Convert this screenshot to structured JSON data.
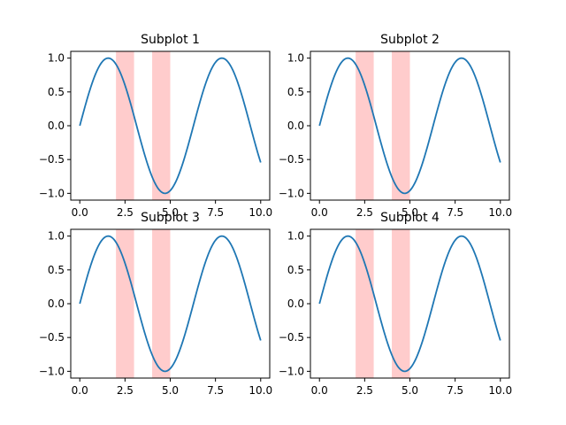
{
  "chart_data": [
    {
      "type": "line",
      "title": "Subplot 1",
      "xlabel": "",
      "ylabel": "",
      "xlim": [
        -0.5,
        10.5
      ],
      "ylim": [
        -1.1,
        1.1
      ],
      "xticks": [
        "0.0",
        "2.5",
        "5.0",
        "7.5",
        "10.0"
      ],
      "yticks": [
        "-1.0",
        "-0.5",
        "0.0",
        "0.5",
        "1.0"
      ],
      "function": "sin(x)",
      "x_range": [
        0,
        10
      ],
      "shaded_regions": [
        [
          2,
          3
        ],
        [
          4,
          5
        ]
      ],
      "shade_color": "#ff0000",
      "line_color": "#1f77b4",
      "grid": false
    },
    {
      "type": "line",
      "title": "Subplot 2",
      "xlabel": "",
      "ylabel": "",
      "xlim": [
        -0.5,
        10.5
      ],
      "ylim": [
        -1.1,
        1.1
      ],
      "xticks": [
        "0.0",
        "2.5",
        "5.0",
        "7.5",
        "10.0"
      ],
      "yticks": [
        "-1.0",
        "-0.5",
        "0.0",
        "0.5",
        "1.0"
      ],
      "function": "sin(x)",
      "x_range": [
        0,
        10
      ],
      "shaded_regions": [
        [
          2,
          3
        ],
        [
          4,
          5
        ]
      ],
      "shade_color": "#ff0000",
      "line_color": "#1f77b4",
      "grid": false
    },
    {
      "type": "line",
      "title": "Subplot 3",
      "xlabel": "",
      "ylabel": "",
      "xlim": [
        -0.5,
        10.5
      ],
      "ylim": [
        -1.1,
        1.1
      ],
      "xticks": [
        "0.0",
        "2.5",
        "5.0",
        "7.5",
        "10.0"
      ],
      "yticks": [
        "-1.0",
        "-0.5",
        "0.0",
        "0.5",
        "1.0"
      ],
      "function": "sin(x)",
      "x_range": [
        0,
        10
      ],
      "shaded_regions": [
        [
          2,
          3
        ],
        [
          4,
          5
        ]
      ],
      "shade_color": "#ff0000",
      "line_color": "#1f77b4",
      "grid": false
    },
    {
      "type": "line",
      "title": "Subplot 4",
      "xlabel": "",
      "ylabel": "",
      "xlim": [
        -0.5,
        10.5
      ],
      "ylim": [
        -1.1,
        1.1
      ],
      "xticks": [
        "0.0",
        "2.5",
        "5.0",
        "7.5",
        "10.0"
      ],
      "yticks": [
        "-1.0",
        "-0.5",
        "0.0",
        "0.5",
        "1.0"
      ],
      "function": "sin(x)",
      "x_range": [
        0,
        10
      ],
      "shaded_regions": [
        [
          2,
          3
        ],
        [
          4,
          5
        ]
      ],
      "shade_color": "#ff0000",
      "line_color": "#1f77b4",
      "grid": false
    }
  ]
}
